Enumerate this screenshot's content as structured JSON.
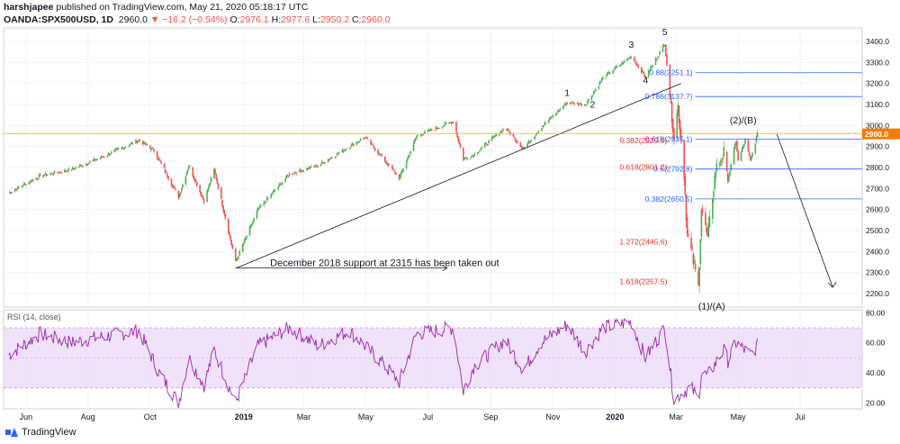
{
  "header": {
    "user": "harshjapee",
    "published_text": " published on TradingView.com, May 21, 2020 05:18:17 UTC",
    "symbol": "OANDA:SPX500USD, 1D",
    "last": "2960.0",
    "change": "▼ −16.2 (−0.54%)",
    "o_label": "O:",
    "o_val": "2976.1",
    "h_label": "H:",
    "h_val": "2977.6",
    "l_label": "L:",
    "l_val": "2950.2",
    "c_label": "C:",
    "c_val": "2960.0"
  },
  "footer": {
    "brand": "TradingView"
  },
  "colors": {
    "up": "#26a69a",
    "up_body": "#4caf50",
    "down": "#ef5350",
    "fib_blue": "#2962ff",
    "fib_red": "#ef2b2b",
    "rsi": "#9c27b0",
    "rsi_band": "#e9d5f7",
    "price_line": "#f0a030"
  },
  "chart_data": [
    {
      "type": "candlestick",
      "name": "price",
      "x_axis_labels": [
        "Jun",
        "Aug",
        "Oct",
        "2019",
        "Mar",
        "May",
        "Jul",
        "Sep",
        "Nov",
        "2020",
        "Mar",
        "May",
        "Jul"
      ],
      "y_tick_labels": [
        "2200.0",
        "2300.0",
        "2400.0",
        "2500.0",
        "2600.0",
        "2700.0",
        "2800.0",
        "2900.0",
        "3000.0",
        "3100.0",
        "3200.0",
        "3300.0",
        "3400.0"
      ],
      "ylim": [
        2170,
        3430
      ],
      "last_price_label": "2960.0",
      "series_anchors": {
        "dates": [
          "2018-05-15",
          "2018-06-15",
          "2018-07-15",
          "2018-08-15",
          "2018-09-20",
          "2018-10-05",
          "2018-10-29",
          "2018-11-08",
          "2018-11-23",
          "2018-12-03",
          "2018-12-24",
          "2019-01-15",
          "2019-02-15",
          "2019-03-15",
          "2019-04-15",
          "2019-04-30",
          "2019-05-15",
          "2019-06-03",
          "2019-06-20",
          "2019-07-26",
          "2019-08-05",
          "2019-08-15",
          "2019-09-15",
          "2019-10-03",
          "2019-10-20",
          "2019-11-15",
          "2019-12-03",
          "2019-12-20",
          "2020-01-17",
          "2020-01-31",
          "2020-02-19",
          "2020-02-28",
          "2020-03-03",
          "2020-03-09",
          "2020-03-12",
          "2020-03-16",
          "2020-03-23",
          "2020-03-26",
          "2020-04-01",
          "2020-04-09",
          "2020-04-17",
          "2020-04-21",
          "2020-04-29",
          "2020-05-01",
          "2020-05-08",
          "2020-05-13",
          "2020-05-20"
        ],
        "close": [
          2680,
          2760,
          2790,
          2850,
          2930,
          2880,
          2660,
          2810,
          2640,
          2790,
          2350,
          2600,
          2770,
          2810,
          2900,
          2945,
          2860,
          2750,
          2950,
          3020,
          2840,
          2860,
          2990,
          2890,
          2990,
          3110,
          3100,
          3225,
          3330,
          3230,
          3390,
          2950,
          3090,
          2770,
          2480,
          2400,
          2230,
          2610,
          2460,
          2790,
          2870,
          2740,
          2930,
          2830,
          2930,
          2830,
          2960
        ]
      },
      "annotations": [
        "1",
        "2",
        "3",
        "4",
        "5",
        "(2)/(B)",
        "(1)/(A)",
        "December 2018 support at 2315 has been taken out"
      ],
      "fib_levels_blue": [
        {
          "ratio": "0.88",
          "price": 3251.1,
          "label": "0.88(3251.1)"
        },
        {
          "ratio": "0.786",
          "price": 3137.7,
          "label": "0.786(3137.7)"
        },
        {
          "ratio": "0.618",
          "price": 2935.1,
          "label": "0.618(2935.1)"
        },
        {
          "ratio": "0.5",
          "price": 2792.8,
          "label": "0.5(2792.8)"
        },
        {
          "ratio": "0.382",
          "price": 2650.5,
          "label": "0.382(2650.5)"
        }
      ],
      "fib_levels_red": [
        {
          "ratio": "0.382",
          "price": 2929.5,
          "label": "0.382(2929.5)"
        },
        {
          "ratio": "0.618",
          "price": 2801.2,
          "label": "0.618(2801.2)"
        },
        {
          "ratio": "1.272",
          "price": 2445.6,
          "label": "1.272(2445.6)"
        },
        {
          "ratio": "1.618",
          "price": 2257.5,
          "label": "1.618(2257.5)"
        }
      ]
    },
    {
      "type": "line",
      "name": "RSI (14, close)",
      "y_tick_labels": [
        "20.00",
        "40.00",
        "60.00",
        "80.00"
      ],
      "ylim": [
        16,
        82
      ],
      "band": [
        30,
        70
      ],
      "series_anchors": {
        "dates": [
          "2018-05-15",
          "2018-06-15",
          "2018-07-15",
          "2018-08-15",
          "2018-09-20",
          "2018-10-10",
          "2018-10-29",
          "2018-11-08",
          "2018-11-23",
          "2018-12-03",
          "2018-12-24",
          "2019-01-15",
          "2019-02-15",
          "2019-03-15",
          "2019-04-15",
          "2019-05-15",
          "2019-06-03",
          "2019-06-20",
          "2019-07-26",
          "2019-08-05",
          "2019-08-15",
          "2019-09-15",
          "2019-10-03",
          "2019-10-20",
          "2019-11-15",
          "2019-12-03",
          "2019-12-20",
          "2020-01-17",
          "2020-01-31",
          "2020-02-19",
          "2020-02-28",
          "2020-03-09",
          "2020-03-16",
          "2020-03-23",
          "2020-03-26",
          "2020-04-01",
          "2020-04-17",
          "2020-04-21",
          "2020-04-29",
          "2020-05-13",
          "2020-05-20"
        ],
        "values": [
          52,
          66,
          60,
          64,
          68,
          40,
          20,
          50,
          32,
          55,
          20,
          58,
          70,
          58,
          68,
          48,
          34,
          66,
          70,
          28,
          44,
          62,
          42,
          60,
          72,
          54,
          70,
          74,
          50,
          70,
          22,
          28,
          30,
          22,
          40,
          38,
          55,
          48,
          60,
          52,
          58
        ]
      }
    }
  ]
}
